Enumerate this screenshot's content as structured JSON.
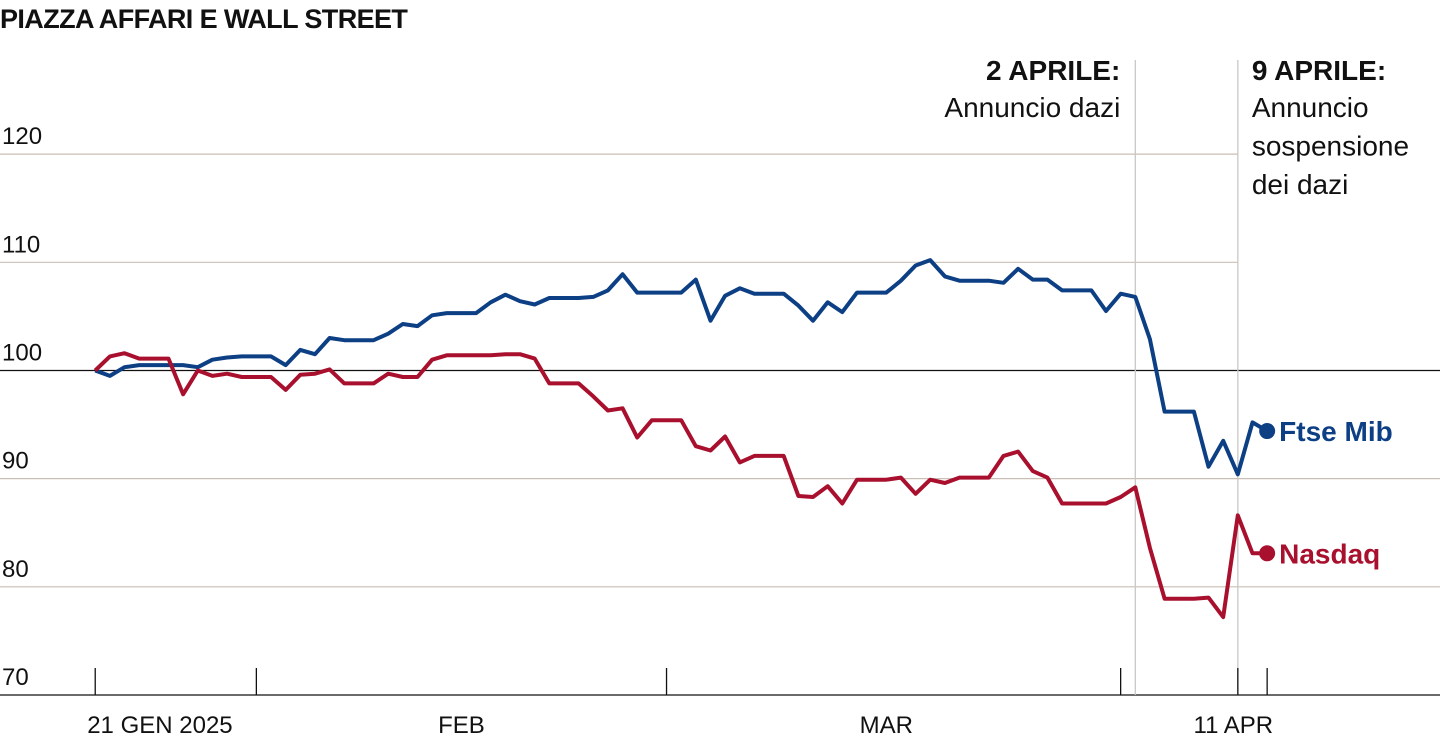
{
  "chart_data": {
    "type": "line",
    "title": "PIAZZA AFFARI E WALL STREET",
    "x": [
      0,
      1,
      2,
      3,
      4,
      5,
      6,
      7,
      8,
      9,
      10,
      11,
      12,
      13,
      14,
      15,
      16,
      17,
      18,
      19,
      20,
      21,
      22,
      23,
      24,
      25,
      26,
      27,
      28,
      29,
      30,
      31,
      32,
      33,
      34,
      35,
      36,
      37,
      38,
      39,
      40,
      41,
      42,
      43,
      44,
      45,
      46,
      47,
      48,
      49,
      50,
      51,
      52,
      53,
      54,
      55,
      56,
      57,
      58,
      59,
      60,
      61,
      62,
      63,
      64,
      65,
      66,
      67,
      68,
      69,
      70,
      71,
      72,
      73,
      74,
      75,
      76,
      77,
      78,
      79,
      80
    ],
    "xlim": [
      -6.5,
      91.8
    ],
    "xticks": [
      {
        "value": 0,
        "label": "21 GEN 2025"
      },
      {
        "value": 80,
        "label": "11 APR"
      }
    ],
    "month_labels": [
      {
        "value": 25,
        "label": "FEB"
      },
      {
        "value": 54,
        "label": "MAR"
      }
    ],
    "month_starts": [
      11,
      39,
      70
    ],
    "ylim": [
      70,
      128.7
    ],
    "yticks": [
      70,
      80,
      90,
      100,
      110,
      120
    ],
    "baseline": 100,
    "grid": true,
    "series": [
      {
        "name": "Ftse Mib",
        "color": "#0d3f84",
        "values": [
          100,
          99.5,
          100.3,
          100.5,
          100.5,
          100.5,
          100.5,
          100.3,
          101.0,
          101.2,
          101.3,
          101.3,
          101.3,
          100.5,
          101.9,
          101.5,
          103.0,
          102.8,
          102.8,
          102.8,
          103.4,
          104.3,
          104.1,
          105.1,
          105.3,
          105.3,
          105.3,
          106.3,
          107.0,
          106.4,
          106.1,
          106.7,
          106.7,
          106.7,
          106.8,
          107.4,
          108.9,
          107.2,
          107.2,
          107.2,
          107.2,
          108.4,
          104.6,
          106.9,
          107.6,
          107.1,
          107.1,
          107.1,
          106.0,
          104.6,
          106.3,
          105.4,
          107.2,
          107.2,
          107.2,
          108.3,
          109.7,
          110.2,
          108.7,
          108.3,
          108.3,
          108.3,
          108.1,
          109.4,
          108.4,
          108.4,
          107.4,
          107.4,
          107.4,
          105.5,
          107.1,
          106.8,
          102.9,
          96.2,
          96.2,
          96.2,
          91.1,
          93.5,
          90.4,
          95.2,
          94.4
        ]
      },
      {
        "name": "Nasdaq",
        "color": "#a8102e",
        "values": [
          100,
          101.3,
          101.6,
          101.1,
          101.1,
          101.1,
          97.8,
          100,
          99.5,
          99.7,
          99.4,
          99.4,
          99.4,
          98.2,
          99.6,
          99.7,
          100.1,
          98.8,
          98.8,
          98.8,
          99.7,
          99.4,
          99.4,
          101.0,
          101.4,
          101.4,
          101.4,
          101.4,
          101.5,
          101.5,
          101.1,
          98.8,
          98.8,
          98.8,
          97.6,
          96.3,
          96.5,
          93.8,
          95.4,
          95.4,
          95.4,
          93.0,
          92.6,
          93.9,
          91.5,
          92.1,
          92.1,
          92.1,
          88.4,
          88.3,
          89.3,
          87.7,
          89.9,
          89.9,
          89.9,
          90.1,
          88.6,
          89.9,
          89.6,
          90.1,
          90.1,
          90.1,
          92.1,
          92.5,
          90.7,
          90.1,
          87.7,
          87.7,
          87.7,
          87.7,
          88.3,
          89.2,
          83.6,
          78.9,
          78.9,
          78.9,
          79.0,
          77.2,
          86.6,
          83.1,
          83.1
        ]
      }
    ],
    "events": [
      {
        "x": 71,
        "title": "2 APRILE:",
        "lines": [
          "Annuncio dazi"
        ],
        "side": "left"
      },
      {
        "x": 78,
        "title": "9 APRILE:",
        "lines": [
          "Annuncio",
          "sospensione",
          "dei dazi"
        ],
        "side": "right"
      }
    ]
  }
}
